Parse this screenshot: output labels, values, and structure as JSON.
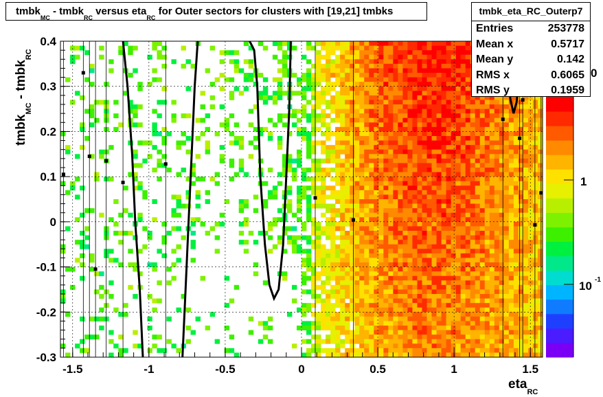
{
  "chart_data": {
    "type": "heatmap",
    "title_parts": [
      "tmbk",
      "MC",
      " - tmbk",
      "RC",
      " versus eta",
      "RC",
      " for Outer sectors for clusters with [19,21] tmbks"
    ],
    "xlabel": "eta",
    "xlabel_sub": "RC",
    "ylabel": "tmbk",
    "ylabel_sub1": "MC",
    "ylabel_mid": " - tmbk",
    "ylabel_sub2": "RC",
    "xlim": [
      -1.58,
      1.58
    ],
    "ylim": [
      -0.3,
      0.4
    ],
    "x_ticks": [
      -1.5,
      -1,
      -0.5,
      0,
      0.5,
      1,
      1.5
    ],
    "x_tick_labels": [
      "-1.5",
      "-1",
      "-0.5",
      "0",
      "0.5",
      "1",
      "1.5"
    ],
    "y_ticks": [
      -0.3,
      -0.2,
      -0.1,
      0,
      0.1,
      0.2,
      0.3,
      0.4
    ],
    "y_tick_labels": [
      "-0.3",
      "-0.2",
      "-0.1",
      "0",
      "0.1",
      "0.2",
      "0.3",
      "0.4"
    ],
    "color_scale": "log",
    "colorbar_tick_labels": [
      "1",
      "10",
      "-1",
      "0"
    ],
    "grid": true,
    "profile_points": [
      {
        "x": -1.56,
        "y": 0.105
      },
      {
        "x": -1.43,
        "y": 0.33
      },
      {
        "x": -1.39,
        "y": 0.145
      },
      {
        "x": -1.35,
        "y": -0.105
      },
      {
        "x": -1.28,
        "y": 0.135
      },
      {
        "x": -1.17,
        "y": 0.087
      },
      {
        "x": -0.89,
        "y": 0.128
      },
      {
        "x": 0.09,
        "y": 0.053
      },
      {
        "x": 0.34,
        "y": 0.004
      },
      {
        "x": 1.32,
        "y": 0.227
      },
      {
        "x": 1.43,
        "y": 0.185
      },
      {
        "x": 1.45,
        "y": 0.27
      },
      {
        "x": 1.53,
        "y": -0.007
      },
      {
        "x": 1.57,
        "y": 0.064
      }
    ],
    "contour_lines": [
      [
        [
          -1.17,
          0.4
        ],
        [
          -1.14,
          0.3
        ],
        [
          -1.11,
          0.15
        ],
        [
          -1.09,
          0.0
        ],
        [
          -1.06,
          -0.15
        ],
        [
          -1.04,
          -0.3
        ]
      ],
      [
        [
          -0.68,
          0.4
        ],
        [
          -0.7,
          0.3
        ],
        [
          -0.72,
          0.15
        ],
        [
          -0.74,
          0.0
        ],
        [
          -0.76,
          -0.15
        ],
        [
          -0.78,
          -0.3
        ]
      ],
      [
        [
          -0.34,
          0.4
        ],
        [
          -0.31,
          0.38
        ],
        [
          -0.29,
          0.3
        ],
        [
          -0.27,
          0.1
        ],
        [
          -0.24,
          -0.05
        ],
        [
          -0.21,
          -0.14
        ],
        [
          -0.18,
          -0.17
        ],
        [
          -0.15,
          -0.15
        ],
        [
          -0.12,
          -0.05
        ],
        [
          -0.1,
          0.1
        ],
        [
          -0.08,
          0.25
        ],
        [
          -0.07,
          0.4
        ]
      ],
      [
        [
          1.34,
          0.4
        ],
        [
          1.35,
          0.33
        ],
        [
          1.37,
          0.27
        ],
        [
          1.39,
          0.24
        ],
        [
          1.41,
          0.265
        ],
        [
          1.43,
          0.33
        ],
        [
          1.45,
          0.4
        ]
      ]
    ],
    "stats": {
      "name": "tmbk_eta_RC_Outerp7",
      "rows": [
        {
          "label": "Entries",
          "value": "253778"
        },
        {
          "label": "Mean x",
          "value": "0.5717"
        },
        {
          "label": "Mean y",
          "value": "0.142"
        },
        {
          "label": "RMS x",
          "value": "0.6065"
        },
        {
          "label": "RMS y",
          "value": "0.1959"
        }
      ]
    }
  }
}
